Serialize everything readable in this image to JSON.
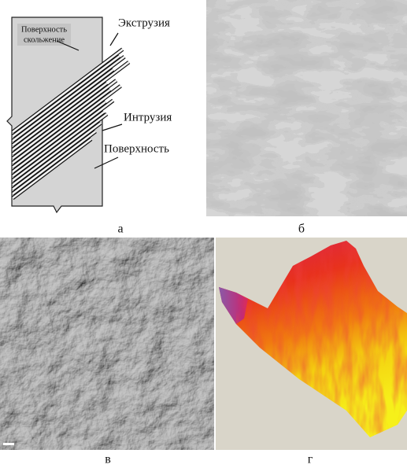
{
  "diagram": {
    "slip_surface_label": [
      "Поверхность",
      "скольжение"
    ],
    "extrusion_label": "Экструзия",
    "intrusion_label": "Интрузия",
    "surface_label": "Поверхность"
  },
  "captions": [
    "а",
    "б",
    "в",
    "г"
  ]
}
